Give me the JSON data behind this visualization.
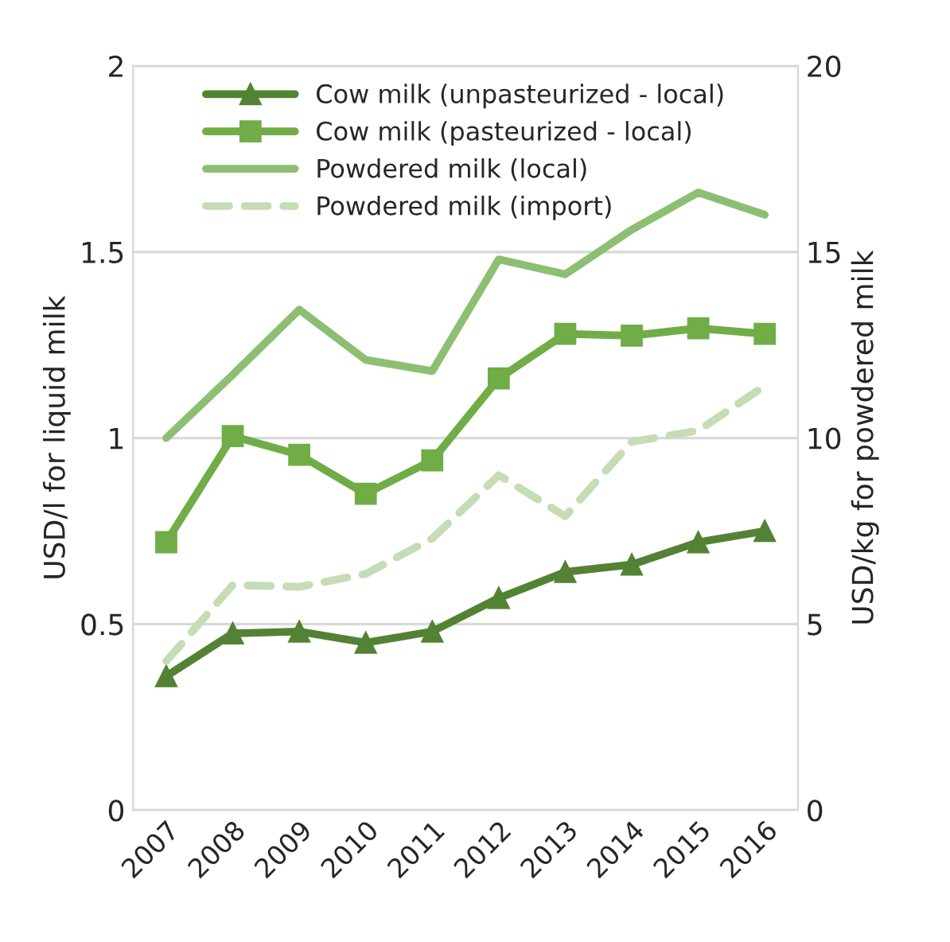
{
  "chart_data": {
    "type": "line",
    "ylabel": "USD/l for liquid milk",
    "y2label": "USD/kg for powdered milk",
    "categories": [
      "2007",
      "2008",
      "2009",
      "2010",
      "2011",
      "2012",
      "2013",
      "2014",
      "2015",
      "2016"
    ],
    "series": [
      {
        "name": "Cow milk (unpasteurized - local)",
        "color": "#548235",
        "marker": "triangle",
        "values": [
          0.36,
          0.475,
          0.48,
          0.45,
          0.48,
          0.57,
          0.64,
          0.66,
          0.72,
          0.75
        ]
      },
      {
        "name": "Cow milk (pasteurized - local)",
        "color": "#70ad47",
        "marker": "square",
        "values": [
          0.72,
          1.005,
          0.955,
          0.85,
          0.94,
          1.16,
          1.28,
          1.275,
          1.295,
          1.28
        ]
      },
      {
        "name": "Powdered milk (local)",
        "color": "#8dbf73",
        "axis": "y2",
        "values": [
          10,
          11.7,
          13.45,
          12.1,
          11.8,
          14.8,
          14.4,
          15.6,
          16.6,
          16.0
        ]
      },
      {
        "name": "Powdered milk (import)",
        "color": "#c5dcb5",
        "axis": "y2",
        "line_style": "dashed",
        "values": [
          4.0,
          6.05,
          6.0,
          6.35,
          7.3,
          9.0,
          7.9,
          9.9,
          10.2,
          11.4
        ]
      }
    ],
    "ylim": [
      0,
      2
    ],
    "yticks": [
      0,
      0.5,
      1,
      1.5,
      2
    ],
    "y2lim": [
      0,
      20
    ],
    "y2ticks": [
      0,
      5,
      10,
      15,
      20
    ],
    "grid": "y",
    "legend": "top"
  }
}
